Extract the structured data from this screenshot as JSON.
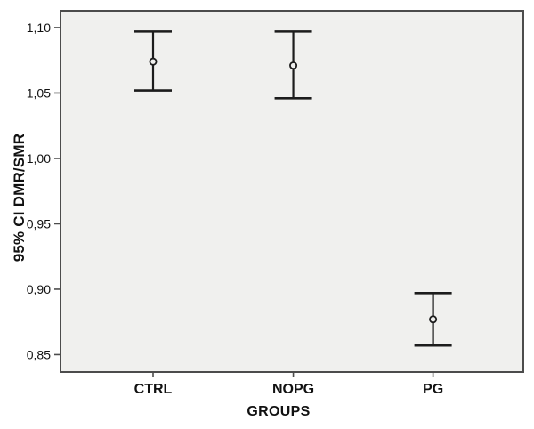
{
  "chart_data": {
    "type": "scatter",
    "variant": "error-bar-interval-plot",
    "title": "",
    "xlabel": "GROUPS",
    "ylabel": "95% CI DMR/SMR",
    "categories": [
      "CTRL",
      "NOPG",
      "PG"
    ],
    "series": [
      {
        "name": "95% CI DMR/SMR",
        "means": [
          1.074,
          1.071,
          0.877
        ],
        "ci_upper": [
          1.097,
          1.097,
          0.897
        ],
        "ci_lower": [
          1.052,
          1.046,
          0.857
        ]
      }
    ],
    "yticks": [
      {
        "value": 1.1,
        "label": "1,10"
      },
      {
        "value": 1.05,
        "label": "1,05"
      },
      {
        "value": 1.0,
        "label": "1,00"
      },
      {
        "value": 0.95,
        "label": "0,95"
      },
      {
        "value": 0.9,
        "label": "0,90"
      },
      {
        "value": 0.85,
        "label": "0,85"
      }
    ],
    "ylim": [
      0.8367,
      1.1129
    ],
    "grid": false,
    "legend": "none",
    "marker": "open-circle",
    "colors": {
      "plot_background": "#f0f0ee",
      "frame": "#4c4c4c",
      "error_bar": "#1c1c1c",
      "text": "#111111"
    }
  }
}
